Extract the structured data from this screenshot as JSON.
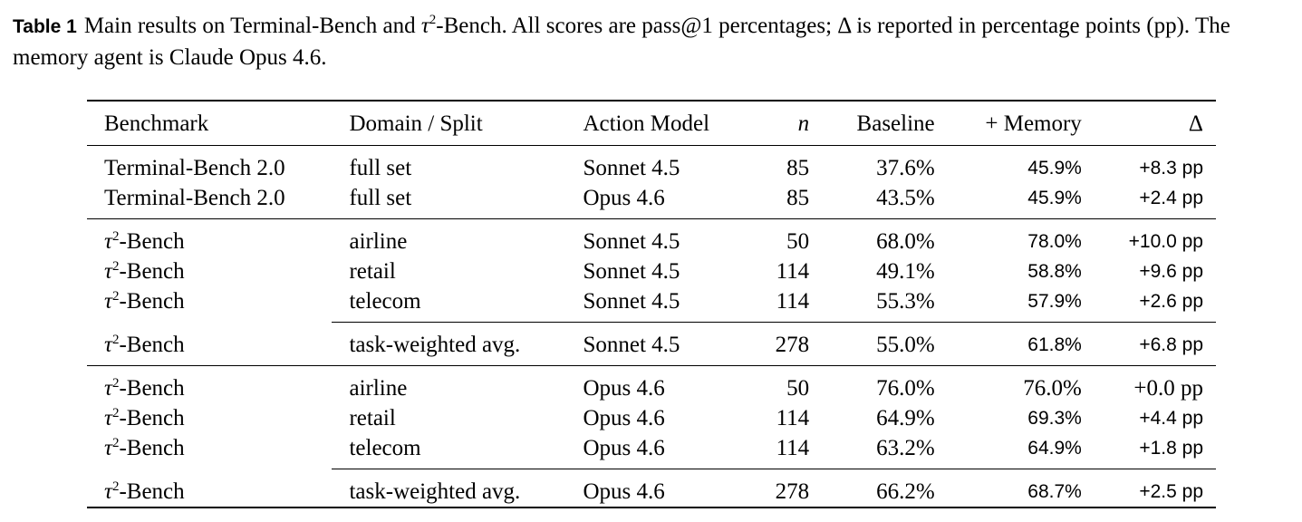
{
  "caption": {
    "label": "Table 1",
    "text_before_tau": "Main results on Terminal-Bench and ",
    "tau": "τ",
    "tau_sup": "2",
    "text_after_tau": "-Bench. All scores are pass@1 percentages; Δ is reported in percentage points (pp). The memory agent is Claude Opus 4.6."
  },
  "table": {
    "headers": [
      "Benchmark",
      "Domain / Split",
      "Action Model",
      "n",
      "Baseline",
      "+ Memory",
      "Δ"
    ],
    "tau_symbol": "τ",
    "tau_sup": "2",
    "tau_suffix": "-Bench",
    "rows": [
      {
        "benchmark": "Terminal-Bench 2.0",
        "domain": "full set",
        "model": "Sonnet 4.5",
        "n": "85",
        "baseline": "37.6%",
        "memory": "45.9%",
        "delta": "+8.3 pp",
        "bold": true
      },
      {
        "benchmark": "Terminal-Bench 2.0",
        "domain": "full set",
        "model": "Opus 4.6",
        "n": "85",
        "baseline": "43.5%",
        "memory": "45.9%",
        "delta": "+2.4 pp",
        "bold": true
      },
      {
        "benchmark": "τ2-Bench",
        "domain": "airline",
        "model": "Sonnet 4.5",
        "n": "50",
        "baseline": "68.0%",
        "memory": "78.0%",
        "delta": "+10.0 pp",
        "bold": true
      },
      {
        "benchmark": "τ2-Bench",
        "domain": "retail",
        "model": "Sonnet 4.5",
        "n": "114",
        "baseline": "49.1%",
        "memory": "58.8%",
        "delta": "+9.6 pp",
        "bold": true
      },
      {
        "benchmark": "τ2-Bench",
        "domain": "telecom",
        "model": "Sonnet 4.5",
        "n": "114",
        "baseline": "55.3%",
        "memory": "57.9%",
        "delta": "+2.6 pp",
        "bold": true
      },
      {
        "benchmark": "τ2-Bench",
        "domain": "task-weighted avg.",
        "model": "Sonnet 4.5",
        "n": "278",
        "baseline": "55.0%",
        "memory": "61.8%",
        "delta": "+6.8 pp",
        "bold": true
      },
      {
        "benchmark": "τ2-Bench",
        "domain": "airline",
        "model": "Opus 4.6",
        "n": "50",
        "baseline": "76.0%",
        "memory": "76.0%",
        "delta": "+0.0 pp",
        "bold": false
      },
      {
        "benchmark": "τ2-Bench",
        "domain": "retail",
        "model": "Opus 4.6",
        "n": "114",
        "baseline": "64.9%",
        "memory": "69.3%",
        "delta": "+4.4 pp",
        "bold": true
      },
      {
        "benchmark": "τ2-Bench",
        "domain": "telecom",
        "model": "Opus 4.6",
        "n": "114",
        "baseline": "63.2%",
        "memory": "64.9%",
        "delta": "+1.8 pp",
        "bold": true
      },
      {
        "benchmark": "τ2-Bench",
        "domain": "task-weighted avg.",
        "model": "Opus 4.6",
        "n": "278",
        "baseline": "66.2%",
        "memory": "68.7%",
        "delta": "+2.5 pp",
        "bold": true
      }
    ]
  }
}
